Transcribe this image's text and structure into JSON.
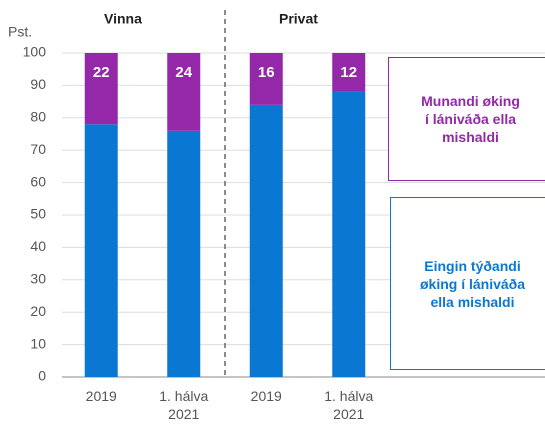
{
  "chart_data": {
    "type": "stacked_bar",
    "y_label": "Pst.",
    "group_labels": [
      "Vinna",
      "Privat"
    ],
    "categories": [
      "2019",
      "1. hálva 2021",
      "2019",
      "1. hálva 2021"
    ],
    "series": [
      {
        "name": "Eingin týðandi øking í lániváða ella mishaldi",
        "color": "#0a78d2",
        "values": [
          78,
          76,
          84,
          88
        ]
      },
      {
        "name": "Munandi øking í lániváða ella mishaldi",
        "color": "#9428a8",
        "values": [
          22,
          24,
          16,
          12
        ]
      }
    ],
    "ylim": [
      0,
      100
    ],
    "yticks": [
      0,
      10,
      20,
      30,
      40,
      50,
      60,
      70,
      80,
      90,
      100
    ],
    "grid": true
  }
}
